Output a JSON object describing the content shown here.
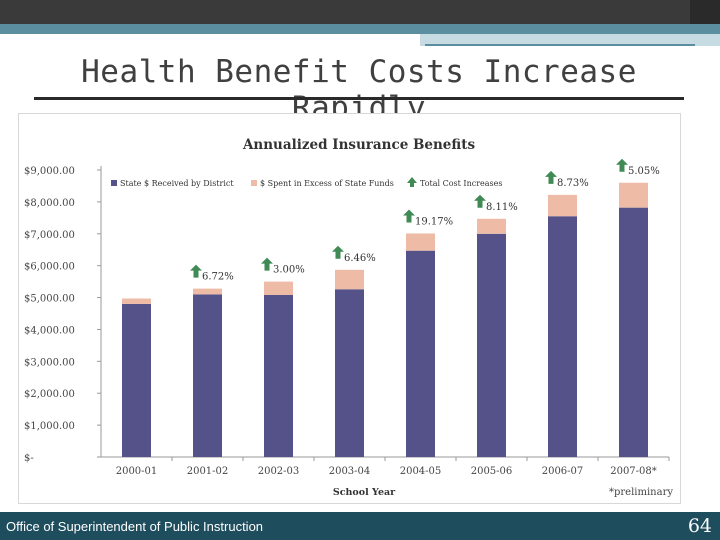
{
  "slide": {
    "title": "Health Benefit Costs Increase Rapidly",
    "footer": "Office of Superintendent of Public Instruction",
    "page_number": "64"
  },
  "colors": {
    "state": "#55528a",
    "excess": "#eebca6",
    "arrow": "#3f8a55",
    "footer_bg": "#1e4d5e",
    "accent_teal": "#5b8fa0"
  },
  "chart_data": {
    "type": "bar",
    "stacked": true,
    "title": "Annualized Insurance Benefits",
    "xlabel": "School Year",
    "ylabel": "",
    "ylim": [
      0,
      9000
    ],
    "y_ticks": [
      "$-",
      "$1,000.00",
      "$2,000.00",
      "$3,000.00",
      "$4,000.00",
      "$5,000.00",
      "$6,000.00",
      "$7,000.00",
      "$8,000.00",
      "$9,000.00"
    ],
    "categories": [
      "2000-01",
      "2001-02",
      "2002-03",
      "2003-04",
      "2004-05",
      "2005-06",
      "2006-07",
      "2007-08*"
    ],
    "series": [
      {
        "name": "State $ Received by District",
        "values": [
          4800,
          5100,
          5080,
          5260,
          6470,
          7000,
          7550,
          7820
        ]
      },
      {
        "name": "$ Spent in Excess of State Funds",
        "values": [
          170,
          180,
          420,
          610,
          540,
          470,
          670,
          780
        ]
      }
    ],
    "legend": {
      "items": [
        "State $ Received by District",
        "$ Spent in Excess of State Funds",
        "Total Cost Increases"
      ],
      "position": "top"
    },
    "annotations": [
      "",
      "6.72%",
      "3.00%",
      "6.46%",
      "19.17%",
      "8.11%",
      "8.73%",
      "5.05%"
    ],
    "footnote": "*preliminary",
    "grid": false
  }
}
